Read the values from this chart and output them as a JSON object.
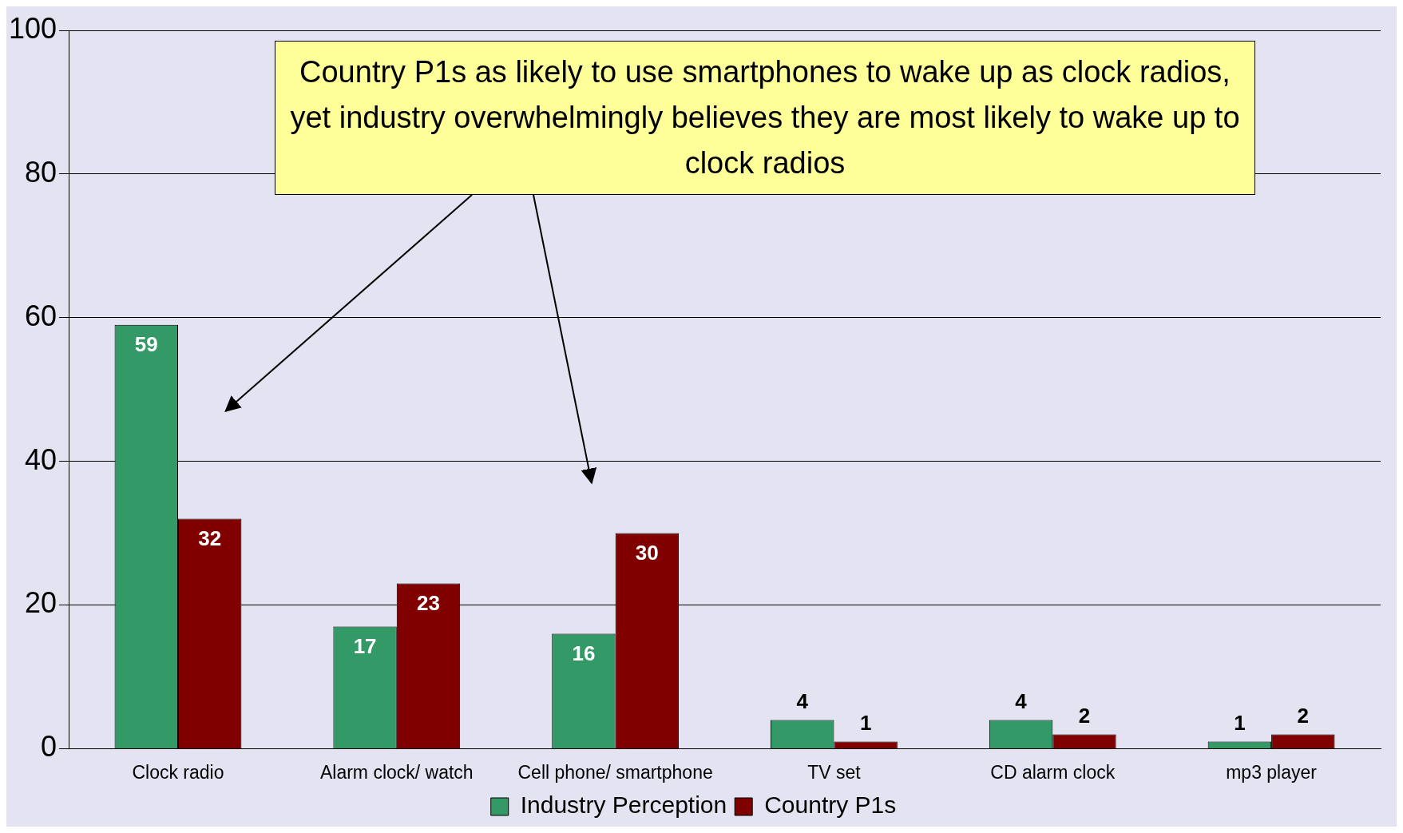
{
  "chart_data": {
    "type": "bar",
    "categories": [
      "Clock radio",
      "Alarm clock/ watch",
      "Cell phone/ smartphone",
      "TV set",
      "CD alarm clock",
      "mp3 player"
    ],
    "series": [
      {
        "name": "Industry Perception",
        "color": "#339966",
        "values": [
          59,
          17,
          16,
          4,
          4,
          1
        ]
      },
      {
        "name": "Country P1s",
        "color": "#800000",
        "values": [
          32,
          23,
          30,
          1,
          2,
          2
        ]
      }
    ],
    "ylim": [
      0,
      100
    ],
    "yticks": [
      0,
      20,
      40,
      60,
      80,
      100
    ],
    "grid": "y",
    "legend": "bottom",
    "data_labels": true,
    "annotations": [
      "Country P1s as likely to use smartphones to wake up as clock radios, yet industry overwhelmingly believes they are most likely to wake up to clock radios"
    ]
  }
}
